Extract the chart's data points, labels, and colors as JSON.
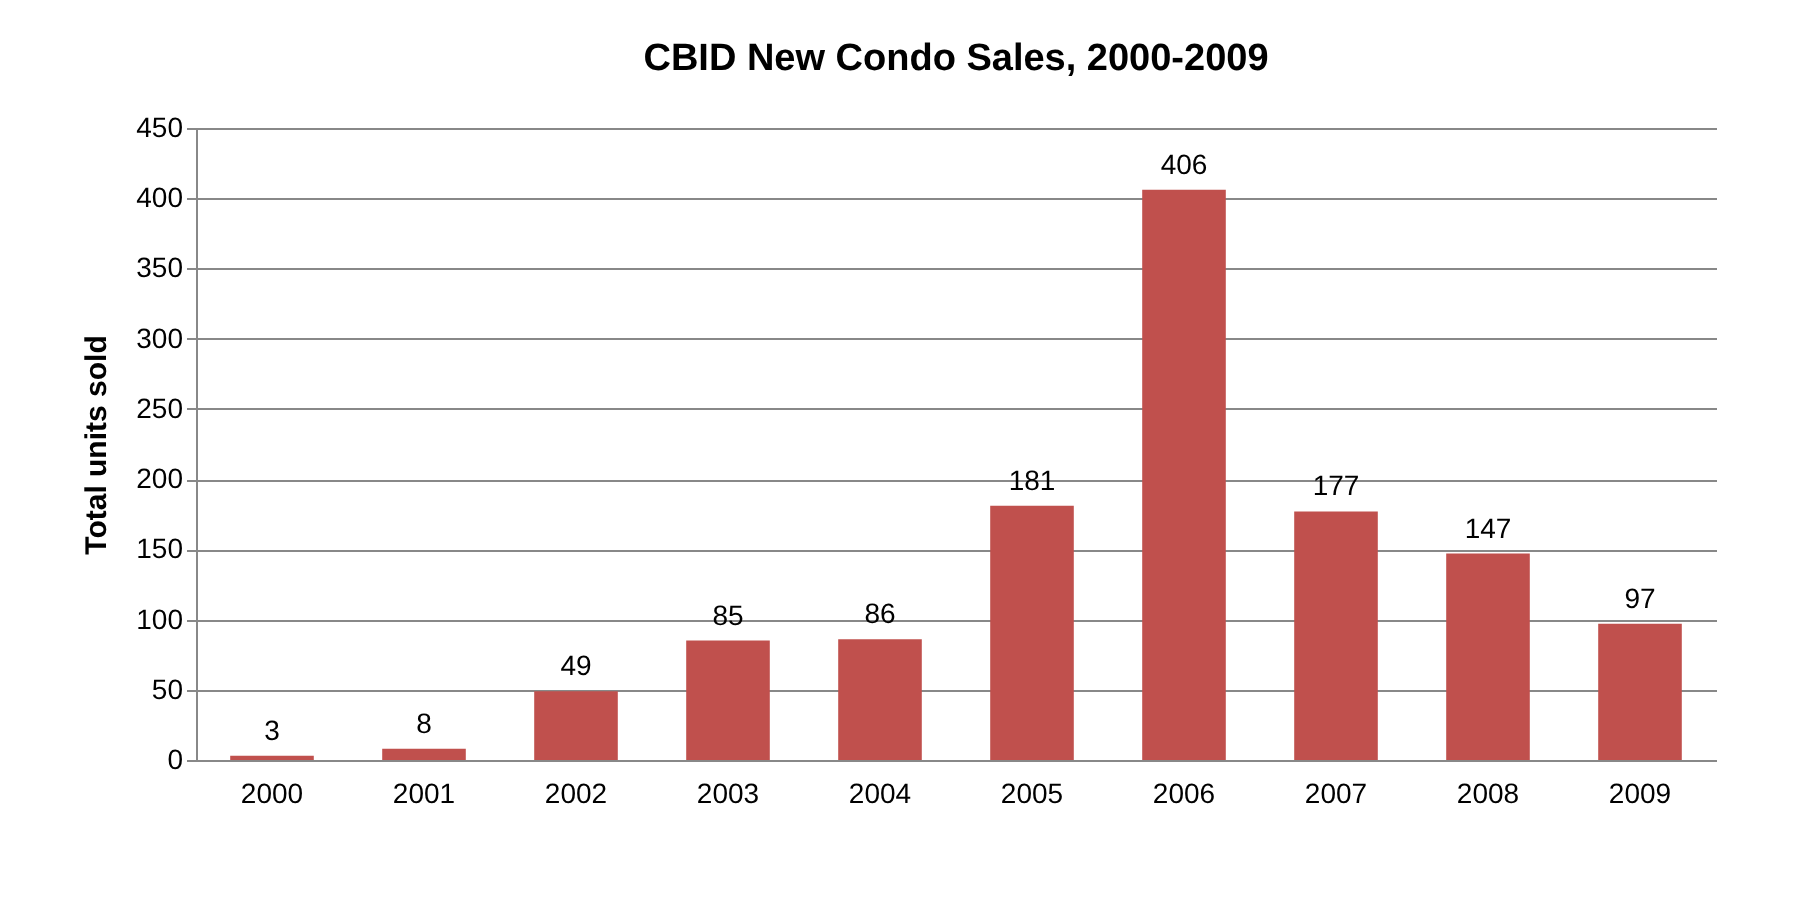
{
  "chart_data": {
    "type": "bar",
    "title": "CBID New Condo Sales, 2000-2009",
    "ylabel": "Total units sold",
    "categories": [
      "2000",
      "2001",
      "2002",
      "2003",
      "2004",
      "2005",
      "2006",
      "2007",
      "2008",
      "2009"
    ],
    "values": [
      3,
      8,
      49,
      85,
      86,
      181,
      406,
      177,
      147,
      97
    ],
    "color": "#c0504d",
    "ylim": [
      0,
      450
    ],
    "yticks": [
      0,
      50,
      100,
      150,
      200,
      250,
      300,
      350,
      400,
      450
    ],
    "grid": "y",
    "data_labels": true
  }
}
